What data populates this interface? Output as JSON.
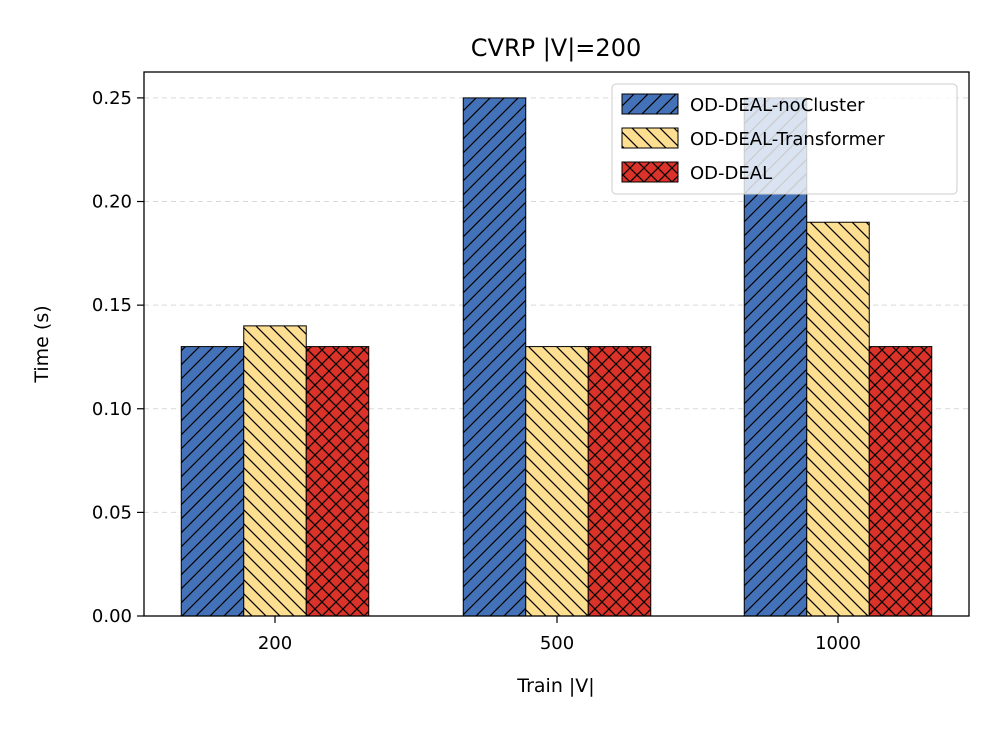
{
  "chart_data": {
    "type": "bar",
    "title": "CVRP |V|=200",
    "xlabel": "Train |V|",
    "ylabel": "Time (s)",
    "categories": [
      "200",
      "500",
      "1000"
    ],
    "ylim": [
      0,
      0.2625
    ],
    "yticks": [
      "0.00",
      "0.05",
      "0.10",
      "0.15",
      "0.20",
      "0.25"
    ],
    "ytick_values": [
      0,
      0.05,
      0.1,
      0.15,
      0.2,
      0.25
    ],
    "grid": "y-dashed",
    "legend_position": "top-right",
    "series": [
      {
        "name": "OD-DEAL-noCluster",
        "values": [
          0.13,
          0.25,
          0.25
        ],
        "color": "#4472b8",
        "hatch": "diagonal"
      },
      {
        "name": "OD-DEAL-Transformer",
        "values": [
          0.14,
          0.13,
          0.19
        ],
        "color": "#fede90",
        "hatch": "back-diagonal"
      },
      {
        "name": "OD-DEAL",
        "values": [
          0.13,
          0.13,
          0.13
        ],
        "color": "#db3229",
        "hatch": "cross"
      }
    ]
  }
}
